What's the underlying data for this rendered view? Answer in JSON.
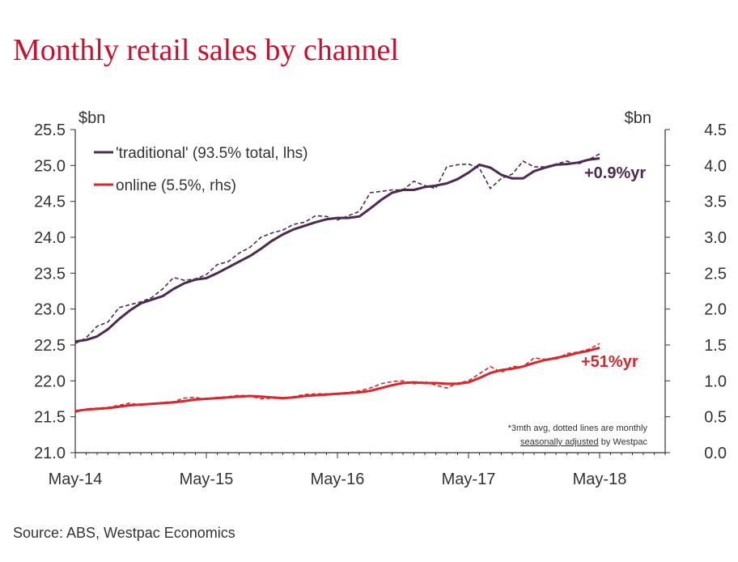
{
  "title": "Monthly retail sales by channel",
  "source": "Source:  ABS, Westpac Economics",
  "chart_data": {
    "type": "line",
    "title": "Monthly retail sales by channel",
    "left_axis": {
      "unit": "$bn",
      "ylim": [
        21.0,
        25.5
      ],
      "ticks": [
        "21.0",
        "21.5",
        "22.0",
        "22.5",
        "23.0",
        "23.5",
        "24.0",
        "24.5",
        "25.0",
        "25.5"
      ]
    },
    "right_axis": {
      "unit": "$bn",
      "ylim": [
        0.0,
        4.5
      ],
      "ticks": [
        "0.0",
        "0.5",
        "1.0",
        "1.5",
        "2.0",
        "2.5",
        "3.0",
        "3.5",
        "4.0",
        "4.5"
      ]
    },
    "x_ticks": [
      "May-14",
      "May-15",
      "May-16",
      "May-17",
      "May-18"
    ],
    "x_start": "2014-05",
    "legend_position": "top-left",
    "grid": false,
    "series": [
      {
        "name": "'traditional' (93.5% total, lhs)",
        "axis": "left",
        "color": "#4b2b4f",
        "annotation": "+0.9%yr",
        "trend": [
          22.55,
          22.57,
          22.62,
          22.72,
          22.86,
          22.98,
          23.08,
          23.13,
          23.18,
          23.28,
          23.36,
          23.41,
          23.43,
          23.5,
          23.58,
          23.66,
          23.74,
          23.84,
          23.95,
          24.04,
          24.11,
          24.16,
          24.21,
          24.25,
          24.27,
          24.27,
          24.29,
          24.4,
          24.52,
          24.62,
          24.66,
          24.66,
          24.7,
          24.72,
          24.75,
          24.81,
          24.9,
          25.01,
          24.97,
          24.87,
          24.82,
          24.82,
          24.92,
          24.97,
          25.01,
          25.02,
          25.04,
          25.08,
          25.1
        ],
        "monthly": [
          22.52,
          22.6,
          22.76,
          22.82,
          23.02,
          23.06,
          23.1,
          23.16,
          23.28,
          23.44,
          23.4,
          23.42,
          23.48,
          23.62,
          23.66,
          23.78,
          23.86,
          24.0,
          24.06,
          24.1,
          24.18,
          24.21,
          24.3,
          24.29,
          24.24,
          24.3,
          24.36,
          24.62,
          24.64,
          24.66,
          24.66,
          24.78,
          24.72,
          24.68,
          24.98,
          25.01,
          25.02,
          24.96,
          24.68,
          24.82,
          24.88,
          25.06,
          24.98,
          24.98,
          25.02,
          25.06,
          25.02,
          25.08,
          25.16
        ]
      },
      {
        "name": "online (5.5%, rhs)",
        "axis": "right",
        "color": "#d7282f",
        "annotation": "+51%yr",
        "trend": [
          0.58,
          0.6,
          0.61,
          0.62,
          0.64,
          0.66,
          0.67,
          0.68,
          0.69,
          0.7,
          0.72,
          0.74,
          0.75,
          0.76,
          0.77,
          0.78,
          0.79,
          0.78,
          0.77,
          0.76,
          0.77,
          0.79,
          0.8,
          0.81,
          0.82,
          0.83,
          0.84,
          0.86,
          0.9,
          0.94,
          0.97,
          0.98,
          0.97,
          0.97,
          0.96,
          0.96,
          0.98,
          1.04,
          1.11,
          1.15,
          1.17,
          1.2,
          1.25,
          1.29,
          1.32,
          1.35,
          1.39,
          1.42,
          1.46
        ],
        "monthly": [
          0.56,
          0.61,
          0.62,
          0.63,
          0.66,
          0.69,
          0.66,
          0.68,
          0.7,
          0.71,
          0.76,
          0.77,
          0.74,
          0.77,
          0.78,
          0.8,
          0.79,
          0.75,
          0.76,
          0.75,
          0.78,
          0.81,
          0.82,
          0.82,
          0.81,
          0.84,
          0.86,
          0.9,
          0.96,
          0.99,
          1.0,
          0.96,
          0.99,
          0.94,
          0.9,
          0.97,
          1.0,
          1.1,
          1.2,
          1.12,
          1.2,
          1.2,
          1.32,
          1.3,
          1.3,
          1.38,
          1.4,
          1.44,
          1.52
        ]
      }
    ],
    "note_lines": [
      "*3mth avg, dotted lines are monthly",
      "seasonally adjusted",
      " by Westpac"
    ]
  }
}
